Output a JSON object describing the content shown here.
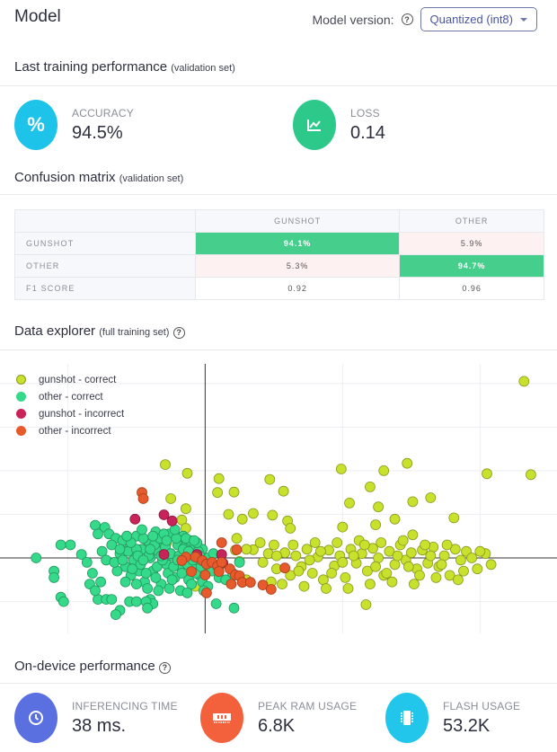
{
  "header": {
    "title": "Model",
    "version_label": "Model version:",
    "version_help_icon": "help-circle-icon",
    "version_selected": "Quantized (int8)"
  },
  "training": {
    "title": "Last training performance",
    "subtitle": "(validation set)",
    "accuracy": {
      "label": "ACCURACY",
      "value": "94.5%",
      "icon": "percent-icon",
      "color": "#1ec3ea"
    },
    "loss": {
      "label": "LOSS",
      "value": "0.14",
      "icon": "chart-line-icon",
      "color": "#2dc98a"
    }
  },
  "confusion": {
    "title": "Confusion matrix",
    "subtitle": "(validation set)",
    "columns": [
      "GUNSHOT",
      "OTHER"
    ],
    "rows": [
      {
        "label": "GUNSHOT",
        "cells": [
          "94.1%",
          "5.9%"
        ]
      },
      {
        "label": "OTHER",
        "cells": [
          "5.3%",
          "94.7%"
        ]
      },
      {
        "label": "F1 SCORE",
        "cells": [
          "0.92",
          "0.96"
        ]
      }
    ]
  },
  "explorer": {
    "title": "Data explorer",
    "subtitle": "(full training set)",
    "help_icon": "help-circle-icon"
  },
  "chart_data": {
    "type": "scatter",
    "title": "",
    "xlabel": "",
    "ylabel": "",
    "grid": true,
    "legend": "top-left",
    "xlim": [
      -1.46,
      2.56
    ],
    "ylim": [
      -1.73,
      4.45
    ],
    "series": [
      {
        "name": "gunshot - correct",
        "color": "#c7e12d",
        "points": [
          [
            2.32,
            4.05
          ],
          [
            2.37,
            1.91
          ],
          [
            2.05,
            1.93
          ],
          [
            1.64,
            1.38
          ],
          [
            1.81,
            0.92
          ],
          [
            1.51,
            1.29
          ],
          [
            1.51,
            0.53
          ],
          [
            1.38,
            0.89
          ],
          [
            1.47,
            2.17
          ],
          [
            1.3,
            2.0
          ],
          [
            1.26,
            1.17
          ],
          [
            1.2,
            1.63
          ],
          [
            1.24,
            0.76
          ],
          [
            1.05,
            1.26
          ],
          [
            1.0,
            0.71
          ],
          [
            0.99,
            2.04
          ],
          [
            0.49,
            0.98
          ],
          [
            0.57,
            1.53
          ],
          [
            0.6,
            0.85
          ],
          [
            0.47,
            1.8
          ],
          [
            0.62,
            0.68
          ],
          [
            0.35,
            1.02
          ],
          [
            0.27,
            0.89
          ],
          [
            0.21,
            1.51
          ],
          [
            0.17,
            1.0
          ],
          [
            0.1,
            1.82
          ],
          [
            0.09,
            1.5
          ],
          [
            -0.13,
            1.94
          ],
          [
            -0.29,
            2.14
          ],
          [
            -0.14,
            1.13
          ],
          [
            -0.17,
            0.87
          ],
          [
            -0.14,
            0.68
          ],
          [
            -0.25,
            1.36
          ],
          [
            -0.28,
            0.35
          ],
          [
            1.17,
            -1.07
          ],
          [
            0.35,
            0.19
          ],
          [
            0.25,
            -0.08
          ],
          [
            0.22,
            0.18
          ],
          [
            0.3,
            -0.5
          ],
          [
            0.42,
            -0.1
          ],
          [
            0.46,
            0.1
          ],
          [
            0.52,
            -0.25
          ],
          [
            0.58,
            0.12
          ],
          [
            0.62,
            -0.4
          ],
          [
            0.66,
            0.05
          ],
          [
            0.7,
            -0.2
          ],
          [
            0.74,
            0.2
          ],
          [
            0.78,
            -0.35
          ],
          [
            0.82,
            0.02
          ],
          [
            0.86,
            -0.5
          ],
          [
            0.9,
            0.18
          ],
          [
            0.94,
            -0.18
          ],
          [
            0.98,
            0.05
          ],
          [
            1.02,
            -0.45
          ],
          [
            1.06,
            0.2
          ],
          [
            1.1,
            -0.12
          ],
          [
            1.14,
            0.1
          ],
          [
            1.18,
            -0.3
          ],
          [
            1.22,
            0.22
          ],
          [
            1.26,
            0.0
          ],
          [
            1.3,
            -0.4
          ],
          [
            1.34,
            0.15
          ],
          [
            1.38,
            -0.15
          ],
          [
            1.42,
            0.3
          ],
          [
            1.46,
            -0.05
          ],
          [
            1.5,
            0.12
          ],
          [
            1.54,
            -0.25
          ],
          [
            1.58,
            0.18
          ],
          [
            1.62,
            -0.12
          ],
          [
            1.66,
            0.25
          ],
          [
            1.7,
            -0.2
          ],
          [
            1.74,
            0.05
          ],
          [
            1.78,
            -0.4
          ],
          [
            1.82,
            0.2
          ],
          [
            1.86,
            -0.05
          ],
          [
            1.9,
            0.15
          ],
          [
            1.94,
            0.0
          ],
          [
            1.98,
            -0.25
          ],
          [
            2.04,
            0.1
          ],
          [
            2.08,
            -0.15
          ],
          [
            0.48,
            -0.55
          ],
          [
            0.56,
            -0.6
          ],
          [
            0.64,
            0.3
          ],
          [
            0.72,
            -0.65
          ],
          [
            0.8,
            0.35
          ],
          [
            0.88,
            -0.7
          ],
          [
            0.96,
            0.35
          ],
          [
            1.04,
            -0.7
          ],
          [
            1.12,
            0.4
          ],
          [
            1.2,
            -0.6
          ],
          [
            1.28,
            0.35
          ],
          [
            1.36,
            -0.55
          ],
          [
            1.44,
            0.4
          ],
          [
            1.52,
            -0.6
          ],
          [
            1.6,
            0.3
          ],
          [
            1.68,
            -0.45
          ],
          [
            1.76,
            0.3
          ],
          [
            1.84,
            -0.5
          ],
          [
            0.4,
            0.35
          ],
          [
            0.5,
            0.3
          ],
          [
            0.3,
            0.2
          ],
          [
            0.76,
            -0.05
          ],
          [
            0.92,
            -0.35
          ],
          [
            1.08,
            0.05
          ],
          [
            1.24,
            -0.2
          ],
          [
            1.4,
            0.05
          ],
          [
            1.56,
            -0.4
          ],
          [
            1.72,
            -0.15
          ],
          [
            1.88,
            -0.3
          ],
          [
            2.0,
            0.15
          ],
          [
            0.52,
            0.05
          ],
          [
            0.68,
            -0.3
          ],
          [
            0.84,
            0.15
          ],
          [
            1.0,
            -0.1
          ],
          [
            1.16,
            0.3
          ],
          [
            1.32,
            -0.35
          ],
          [
            1.48,
            -0.2
          ],
          [
            1.64,
            0.05
          ],
          [
            -0.07,
            -0.65
          ],
          [
            0.23,
            0.45
          ]
        ]
      },
      {
        "name": "other - correct",
        "color": "#35d98a",
        "points": [
          [
            -1.23,
            0.0
          ],
          [
            -1.1,
            -0.3
          ],
          [
            -1.1,
            -0.45
          ],
          [
            -1.05,
            -0.9
          ],
          [
            -1.03,
            -1.0
          ],
          [
            -1.05,
            0.3
          ],
          [
            -0.98,
            0.3
          ],
          [
            -0.9,
            0.08
          ],
          [
            -0.86,
            -0.1
          ],
          [
            -0.82,
            -0.35
          ],
          [
            -0.78,
            -0.95
          ],
          [
            -0.76,
            -0.55
          ],
          [
            -0.72,
            -0.95
          ],
          [
            -0.68,
            -0.95
          ],
          [
            -0.62,
            -1.2
          ],
          [
            -0.55,
            -1.0
          ],
          [
            -0.5,
            -1.0
          ],
          [
            -0.4,
            -0.95
          ],
          [
            -0.38,
            -1.05
          ],
          [
            -0.84,
            -0.6
          ],
          [
            -0.8,
            -0.75
          ],
          [
            -0.8,
            0.75
          ],
          [
            -0.73,
            0.7
          ],
          [
            -0.78,
            0.55
          ],
          [
            -0.7,
            0.55
          ],
          [
            -0.65,
            0.45
          ],
          [
            -0.75,
            0.15
          ],
          [
            -0.72,
            -0.05
          ],
          [
            -0.68,
            0.3
          ],
          [
            -0.62,
            0.1
          ],
          [
            -0.58,
            -0.2
          ],
          [
            -0.55,
            0.25
          ],
          [
            -0.52,
            -0.05
          ],
          [
            -0.5,
            0.5
          ],
          [
            -0.48,
            -0.3
          ],
          [
            -0.46,
            0.2
          ],
          [
            -0.44,
            -0.55
          ],
          [
            -0.42,
            0.4
          ],
          [
            -0.4,
            0.0
          ],
          [
            -0.38,
            -0.3
          ],
          [
            -0.36,
            0.6
          ],
          [
            -0.34,
            0.15
          ],
          [
            -0.32,
            -0.6
          ],
          [
            -0.3,
            0.35
          ],
          [
            -0.28,
            -0.15
          ],
          [
            -0.26,
            0.55
          ],
          [
            -0.24,
            0.05
          ],
          [
            -0.22,
            -0.45
          ],
          [
            -0.2,
            0.3
          ],
          [
            -0.18,
            -0.2
          ],
          [
            -0.16,
            0.5
          ],
          [
            -0.14,
            0.0
          ],
          [
            -0.12,
            -0.5
          ],
          [
            -0.1,
            0.25
          ],
          [
            -0.08,
            -0.25
          ],
          [
            -0.06,
            0.1
          ],
          [
            -0.04,
            -0.4
          ],
          [
            -0.02,
            0.2
          ],
          [
            0.0,
            -0.2
          ],
          [
            0.02,
            0.0
          ],
          [
            0.05,
            -0.3
          ],
          [
            0.1,
            -0.45
          ],
          [
            0.15,
            -0.5
          ],
          [
            0.2,
            -0.35
          ],
          [
            0.25,
            -0.1
          ],
          [
            -0.6,
            0.4
          ],
          [
            -0.56,
            0.15
          ],
          [
            -0.54,
            -0.4
          ],
          [
            -0.5,
            0.2
          ],
          [
            -0.47,
            -0.15
          ],
          [
            -0.45,
            0.45
          ],
          [
            -0.43,
            -0.35
          ],
          [
            -0.41,
            0.05
          ],
          [
            -0.37,
            0.3
          ],
          [
            -0.35,
            -0.2
          ],
          [
            -0.33,
            0.45
          ],
          [
            -0.31,
            -0.05
          ],
          [
            -0.29,
            0.25
          ],
          [
            -0.27,
            -0.35
          ],
          [
            -0.25,
            0.1
          ],
          [
            -0.23,
            -0.2
          ],
          [
            -0.21,
            0.45
          ],
          [
            -0.19,
            0.05
          ],
          [
            -0.17,
            -0.35
          ],
          [
            -0.15,
            0.25
          ],
          [
            -0.13,
            -0.15
          ],
          [
            -0.11,
            0.4
          ],
          [
            -0.09,
            -0.05
          ],
          [
            -0.07,
            -0.35
          ],
          [
            -0.05,
            0.15
          ],
          [
            -0.03,
            -0.2
          ],
          [
            -0.64,
            -0.3
          ],
          [
            -0.62,
            0.2
          ],
          [
            -0.58,
            -0.55
          ],
          [
            -0.54,
            0.35
          ],
          [
            -0.5,
            -0.6
          ],
          [
            -0.46,
            0.65
          ],
          [
            -0.42,
            -0.7
          ],
          [
            -0.38,
            0.5
          ],
          [
            -0.34,
            -0.75
          ],
          [
            -0.3,
            0.55
          ],
          [
            -0.26,
            -0.7
          ],
          [
            -0.22,
            0.65
          ],
          [
            -0.18,
            -0.75
          ],
          [
            -0.14,
            0.45
          ],
          [
            -0.1,
            -0.6
          ],
          [
            -0.06,
            0.35
          ],
          [
            -0.02,
            -0.55
          ],
          [
            0.02,
            -0.65
          ],
          [
            -0.66,
            -0.1
          ],
          [
            -0.6,
            -0.05
          ],
          [
            -0.57,
            0.5
          ],
          [
            -0.53,
            -0.25
          ],
          [
            -0.49,
            0.05
          ],
          [
            -0.45,
            -0.05
          ],
          [
            -0.4,
            0.2
          ],
          [
            -0.36,
            -0.45
          ],
          [
            -0.32,
            0.05
          ],
          [
            -0.28,
            0.4
          ],
          [
            -0.24,
            -0.5
          ],
          [
            -0.2,
            -0.05
          ],
          [
            -0.16,
            0.2
          ],
          [
            -0.12,
            0.15
          ],
          [
            -0.08,
            0.4
          ],
          [
            -0.04,
            0.05
          ],
          [
            -0.43,
            -1.0
          ],
          [
            -0.42,
            -1.15
          ],
          [
            -0.65,
            -1.3
          ],
          [
            -0.13,
            -0.8
          ],
          [
            0.08,
            -1.05
          ],
          [
            0.21,
            -1.15
          ],
          [
            -0.01,
            -0.75
          ],
          [
            0.06,
            0.1
          ]
        ]
      },
      {
        "name": "gunshot - incorrect",
        "color": "#c9245a",
        "points": [
          [
            -0.51,
            0.89
          ],
          [
            -0.3,
            0.99
          ],
          [
            -0.24,
            0.85
          ],
          [
            -0.3,
            0.08
          ],
          [
            -0.06,
            0.08
          ],
          [
            0.12,
            0.08
          ],
          [
            0.13,
            -0.12
          ]
        ]
      },
      {
        "name": "other - incorrect",
        "color": "#e65a2b",
        "points": [
          [
            -0.46,
            1.5
          ],
          [
            -0.45,
            1.36
          ],
          [
            0.12,
            0.35
          ],
          [
            -0.14,
            0.02
          ],
          [
            -0.07,
            0.02
          ],
          [
            -0.02,
            -0.06
          ],
          [
            0.01,
            -0.14
          ],
          [
            0.05,
            -0.1
          ],
          [
            0.09,
            -0.19
          ],
          [
            -0.1,
            -0.31
          ],
          [
            0.0,
            -0.39
          ],
          [
            0.18,
            -0.25
          ],
          [
            0.22,
            -0.39
          ],
          [
            0.19,
            -0.6
          ],
          [
            0.25,
            -0.41
          ],
          [
            0.27,
            -0.56
          ],
          [
            0.33,
            -0.56
          ],
          [
            0.42,
            -0.62
          ],
          [
            0.48,
            -0.72
          ],
          [
            0.01,
            -0.8
          ],
          [
            0.23,
            0.19
          ],
          [
            0.12,
            -0.1
          ],
          [
            0.1,
            -0.31
          ],
          [
            0.58,
            -0.23
          ],
          [
            -0.17,
            -0.06
          ]
        ]
      }
    ]
  },
  "ondevice": {
    "title": "On-device performance",
    "help_icon": "help-circle-icon",
    "items": [
      {
        "label": "INFERENCING TIME",
        "value": "38 ms.",
        "icon": "clock-icon",
        "color": "#5a6fe0"
      },
      {
        "label": "PEAK RAM USAGE",
        "value": "6.8K",
        "icon": "memory-icon",
        "color": "#f2603c"
      },
      {
        "label": "FLASH USAGE",
        "value": "53.2K",
        "icon": "chip-icon",
        "color": "#22c6ea"
      }
    ]
  }
}
